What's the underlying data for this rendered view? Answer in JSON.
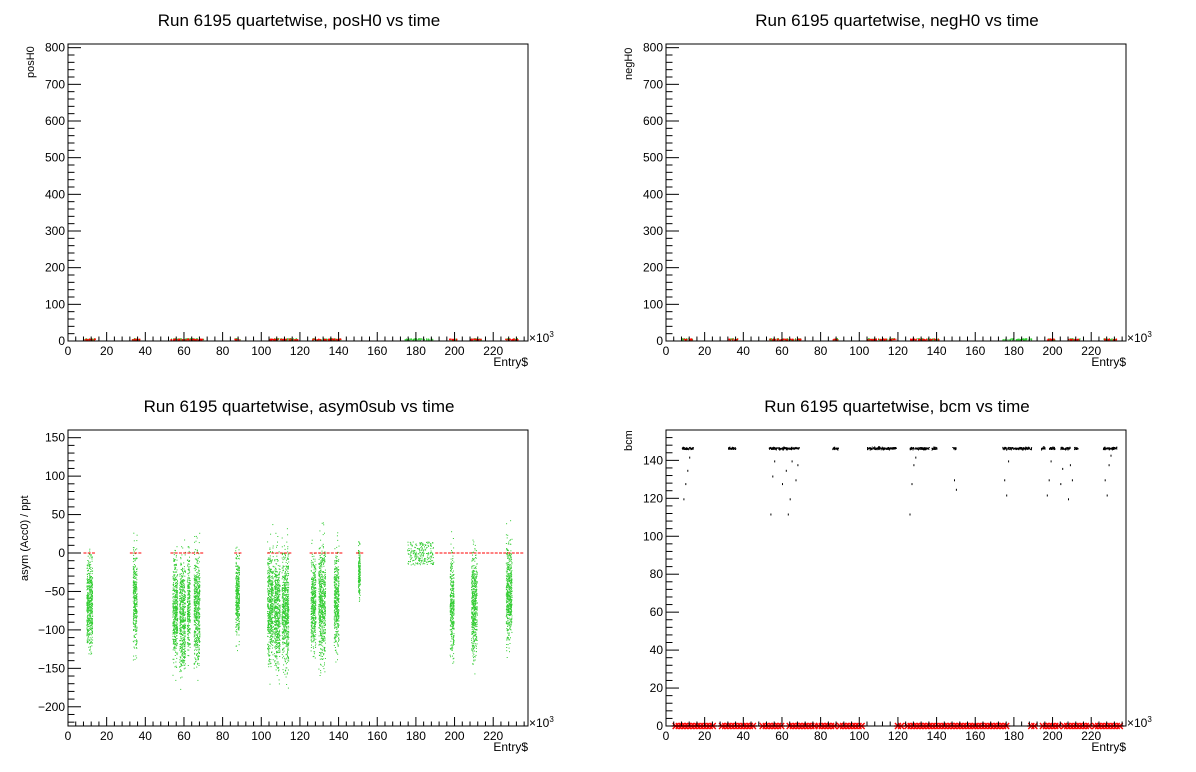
{
  "colors": {
    "green": "#33cc33",
    "red": "#ff0000",
    "black": "#000000"
  },
  "chart_data": [
    {
      "type": "scatter",
      "title": "Run 6195 quartetwise, posH0 vs time",
      "xlabel": "Entry$",
      "ylabel": "posH0",
      "x_multiplier": "×10",
      "x_multiplier_exp": "3",
      "xlim": [
        0,
        238
      ],
      "ylim": [
        0,
        810
      ],
      "xticks": [
        0,
        20,
        40,
        60,
        80,
        100,
        120,
        140,
        160,
        180,
        200,
        220
      ],
      "yticks": [
        0,
        100,
        200,
        300,
        400,
        500,
        600,
        700,
        800
      ],
      "series": [
        {
          "color": "#33cc33",
          "segments": [
            [
              8,
              14
            ],
            [
              32,
              37
            ],
            [
              53,
              70
            ],
            [
              86,
              89
            ],
            [
              104,
              119
            ],
            [
              126,
              141
            ],
            [
              174,
              189
            ],
            [
              197,
              201
            ],
            [
              208,
              214
            ],
            [
              226,
              233
            ]
          ],
          "band": [
            0,
            4
          ]
        },
        {
          "color": "#ff0000",
          "segments": [
            [
              8,
              14
            ],
            [
              32,
              37
            ],
            [
              53,
              70
            ],
            [
              86,
              89
            ],
            [
              104,
              119
            ],
            [
              126,
              141
            ],
            [
              197,
              201
            ],
            [
              208,
              214
            ],
            [
              226,
              233
            ]
          ],
          "band": [
            0,
            3
          ]
        }
      ]
    },
    {
      "type": "scatter",
      "title": "Run 6195 quartetwise, negH0 vs time",
      "xlabel": "Entry$",
      "ylabel": "negH0",
      "x_multiplier": "×10",
      "x_multiplier_exp": "3",
      "xlim": [
        0,
        238
      ],
      "ylim": [
        0,
        810
      ],
      "xticks": [
        0,
        20,
        40,
        60,
        80,
        100,
        120,
        140,
        160,
        180,
        200,
        220
      ],
      "yticks": [
        0,
        100,
        200,
        300,
        400,
        500,
        600,
        700,
        800
      ],
      "series": [
        {
          "color": "#33cc33",
          "segments": [
            [
              8,
              14
            ],
            [
              32,
              37
            ],
            [
              53,
              70
            ],
            [
              86,
              89
            ],
            [
              104,
              119
            ],
            [
              126,
              141
            ],
            [
              174,
              189
            ],
            [
              197,
              201
            ],
            [
              208,
              214
            ],
            [
              226,
              233
            ]
          ],
          "band": [
            0,
            4
          ]
        },
        {
          "color": "#ff0000",
          "segments": [
            [
              8,
              14
            ],
            [
              32,
              37
            ],
            [
              53,
              70
            ],
            [
              86,
              89
            ],
            [
              104,
              119
            ],
            [
              126,
              141
            ],
            [
              197,
              201
            ],
            [
              208,
              214
            ],
            [
              226,
              233
            ]
          ],
          "band": [
            0,
            3
          ]
        }
      ]
    },
    {
      "type": "scatter",
      "title": "Run 6195 quartetwise, asym0sub vs time",
      "xlabel": "Entry$",
      "ylabel": "asym (Acc0) / ppt",
      "x_multiplier": "×10",
      "x_multiplier_exp": "3",
      "xlim": [
        0,
        238
      ],
      "ylim": [
        -225,
        160
      ],
      "xticks": [
        0,
        20,
        40,
        60,
        80,
        100,
        120,
        140,
        160,
        180,
        200,
        220
      ],
      "yticks": [
        -200,
        -150,
        -100,
        -50,
        0,
        50,
        100,
        150
      ],
      "series": [
        {
          "color": "#33cc33",
          "clusters": [
            {
              "x": [
                9.5,
                12.5
              ],
              "y": [
                -150,
                70
              ]
            },
            {
              "x": [
                33.5,
                35.5
              ],
              "y": [
                -150,
                90
              ]
            },
            {
              "x": [
                54,
                56.5
              ],
              "y": [
                -165,
                80
              ]
            },
            {
              "x": [
                57.5,
                60.5
              ],
              "y": [
                -185,
                90
              ]
            },
            {
              "x": [
                61.5,
                63
              ],
              "y": [
                -160,
                85
              ]
            },
            {
              "x": [
                65,
                68
              ],
              "y": [
                -170,
                90
              ]
            },
            {
              "x": [
                86.5,
                88.5
              ],
              "y": [
                -130,
                75
              ]
            },
            {
              "x": [
                103,
                106
              ],
              "y": [
                -170,
                100
              ]
            },
            {
              "x": [
                106.5,
                109.5
              ],
              "y": [
                -180,
                95
              ]
            },
            {
              "x": [
                110.5,
                114
              ],
              "y": [
                -175,
                100
              ]
            },
            {
              "x": [
                125.5,
                128
              ],
              "y": [
                -150,
                80
              ]
            },
            {
              "x": [
                129.5,
                133
              ],
              "y": [
                -170,
                110
              ]
            },
            {
              "x": [
                137.5,
                140
              ],
              "y": [
                -150,
                85
              ]
            },
            {
              "x": [
                150,
                151
              ],
              "y": [
                -75,
                60
              ]
            },
            {
              "x": [
                175.5,
                189
              ],
              "y": [
                -15,
                15
              ],
              "bars": true
            },
            {
              "x": [
                197.5,
                199.5
              ],
              "y": [
                -160,
                85
              ]
            },
            {
              "x": [
                208.5,
                211.5
              ],
              "y": [
                -165,
                95
              ]
            },
            {
              "x": [
                226.5,
                229.5
              ],
              "y": [
                -140,
                95
              ]
            }
          ]
        },
        {
          "color": "#ff0000",
          "y": 0,
          "segments": [
            [
              8,
              14
            ],
            [
              32,
              37
            ],
            [
              53,
              70
            ],
            [
              86,
              89
            ],
            [
              103,
              115
            ],
            [
              125,
              141
            ],
            [
              149,
              152
            ],
            [
              190,
              235
            ]
          ]
        }
      ]
    },
    {
      "type": "scatter",
      "title": "Run 6195 quartetwise, bcm vs time",
      "xlabel": "Entry$",
      "ylabel": "bcm",
      "x_multiplier": "×10",
      "x_multiplier_exp": "3",
      "xlim": [
        0,
        238
      ],
      "ylim": [
        0,
        156
      ],
      "xticks": [
        0,
        20,
        40,
        60,
        80,
        100,
        120,
        140,
        160,
        180,
        200,
        220
      ],
      "yticks": [
        0,
        20,
        40,
        60,
        80,
        100,
        120,
        140
      ],
      "series": [
        {
          "color": "#000000",
          "y": 146.5,
          "segments": [
            [
              8,
              14
            ],
            [
              32,
              36
            ],
            [
              53,
              69
            ],
            [
              86,
              89
            ],
            [
              104,
              119
            ],
            [
              126,
              136
            ],
            [
              137,
              140
            ],
            [
              148,
              150
            ],
            [
              174,
              189
            ],
            [
              194,
              196
            ],
            [
              198,
              201
            ],
            [
              204,
              209
            ],
            [
              211,
              213
            ],
            [
              226,
              233
            ]
          ]
        },
        {
          "color": "#000000",
          "outliers": [
            [
              9,
              120
            ],
            [
              10,
              128
            ],
            [
              11,
              135
            ],
            [
              12,
              142
            ],
            [
              54,
              112
            ],
            [
              55,
              132
            ],
            [
              56,
              140
            ],
            [
              60,
              128
            ],
            [
              62,
              135
            ],
            [
              63,
              112
            ],
            [
              64,
              120
            ],
            [
              65,
              140
            ],
            [
              67,
              130
            ],
            [
              68,
              138
            ],
            [
              126,
              112
            ],
            [
              127,
              128
            ],
            [
              128,
              138
            ],
            [
              129,
              142
            ],
            [
              149,
              130
            ],
            [
              150,
              125
            ],
            [
              175,
              130
            ],
            [
              176,
              122
            ],
            [
              177,
              140
            ],
            [
              197,
              122
            ],
            [
              198,
              130
            ],
            [
              199,
              140
            ],
            [
              204,
              128
            ],
            [
              205,
              136
            ],
            [
              208,
              120
            ],
            [
              209,
              138
            ],
            [
              210,
              130
            ],
            [
              227,
              130
            ],
            [
              228,
              122
            ],
            [
              229,
              138
            ],
            [
              230,
              143
            ]
          ]
        },
        {
          "color": "#ff0000",
          "y": 0,
          "segments": [
            [
              5,
              25
            ],
            [
              29,
              46
            ],
            [
              50,
              60
            ],
            [
              64,
              77
            ],
            [
              79,
              88
            ],
            [
              90,
              102
            ],
            [
              120,
              122
            ],
            [
              125,
              160
            ],
            [
              160,
              177
            ],
            [
              189,
              191
            ],
            [
              195,
              204
            ],
            [
              206,
              219
            ],
            [
              222,
              235
            ]
          ]
        }
      ]
    }
  ]
}
